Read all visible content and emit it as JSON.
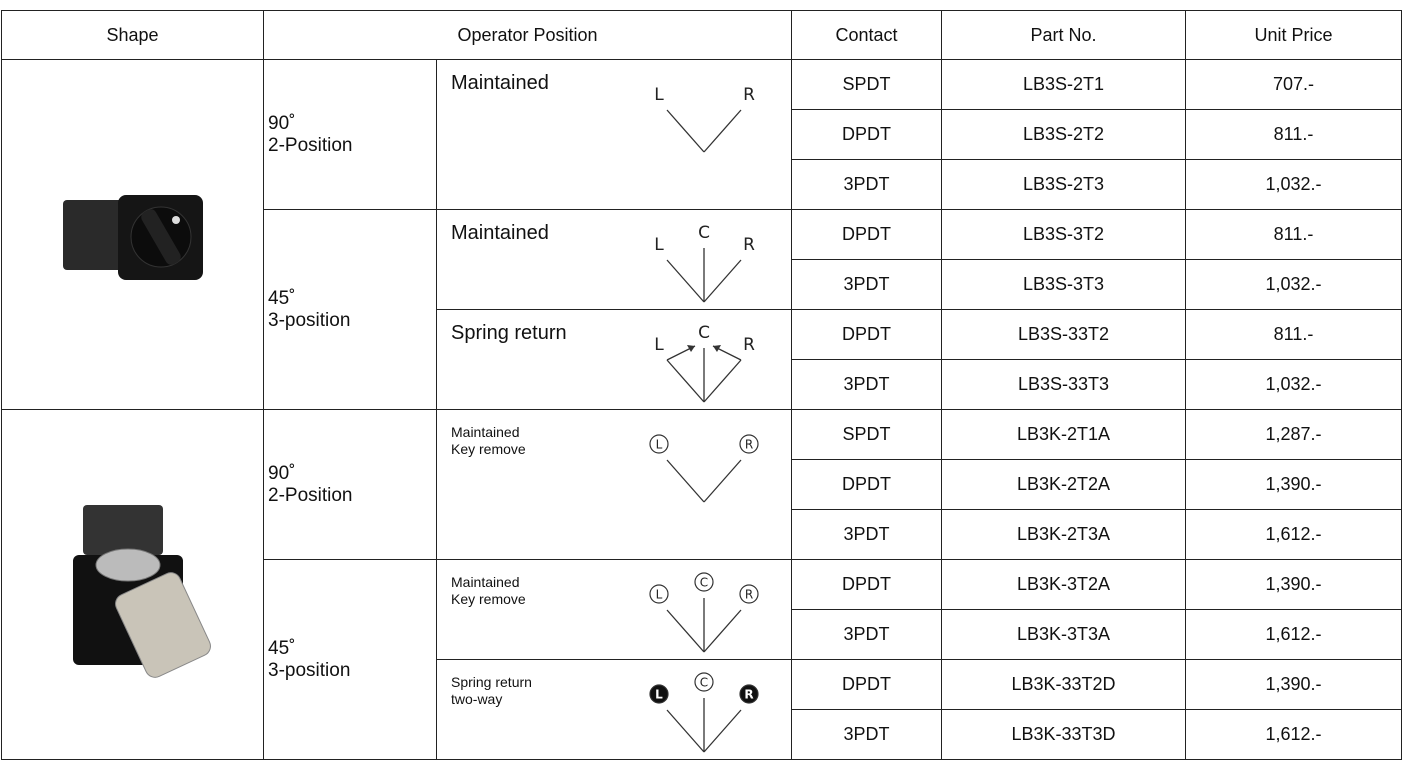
{
  "table": {
    "header": [
      "Shape",
      "Operator Position",
      "Contact",
      "Part No.",
      "Unit Price"
    ],
    "groups": [
      {
        "positions": [
          {
            "angle": "90˚",
            "label": "2-Position",
            "operators": [
              {
                "name": [
                  "Maintained"
                ],
                "small": false,
                "diagram": {
                  "labels": [
                    "L",
                    "R"
                  ],
                  "spring": false,
                  "circled": false,
                  "filled_ends": false
                },
                "rows": [
                  [
                    "SPDT",
                    "LB3S-2T1",
                    "707.-"
                  ],
                  [
                    "DPDT",
                    "LB3S-2T2",
                    "811.-"
                  ],
                  [
                    "3PDT",
                    "LB3S-2T3",
                    "1,032.-"
                  ]
                ]
              }
            ]
          },
          {
            "angle": "45˚",
            "label": "3-position",
            "operators": [
              {
                "name": [
                  "Maintained"
                ],
                "small": false,
                "diagram": {
                  "labels": [
                    "L",
                    "C",
                    "R"
                  ],
                  "spring": false,
                  "circled": false,
                  "filled_ends": false
                },
                "rows": [
                  [
                    "DPDT",
                    "LB3S-3T2",
                    "811.-"
                  ],
                  [
                    "3PDT",
                    "LB3S-3T3",
                    "1,032.-"
                  ]
                ]
              },
              {
                "name": [
                  "Spring return"
                ],
                "small": false,
                "diagram": {
                  "labels": [
                    "L",
                    "C",
                    "R"
                  ],
                  "spring": true,
                  "circled": false,
                  "filled_ends": false
                },
                "rows": [
                  [
                    "DPDT",
                    "LB3S-33T2",
                    "811.-"
                  ],
                  [
                    "3PDT",
                    "LB3S-33T3",
                    "1,032.-"
                  ]
                ]
              }
            ]
          }
        ]
      },
      {
        "positions": [
          {
            "angle": "90˚",
            "label": "2-Position",
            "operators": [
              {
                "name": [
                  "Maintained",
                  "Key remove"
                ],
                "small": true,
                "diagram": {
                  "labels": [
                    "L",
                    "R"
                  ],
                  "spring": false,
                  "circled": true,
                  "filled_ends": false
                },
                "rows": [
                  [
                    "SPDT",
                    "LB3K-2T1A",
                    "1,287.-"
                  ],
                  [
                    "DPDT",
                    "LB3K-2T2A",
                    "1,390.-"
                  ],
                  [
                    "3PDT",
                    "LB3K-2T3A",
                    "1,612.-"
                  ]
                ]
              }
            ]
          },
          {
            "angle": "45˚",
            "label": "3-position",
            "operators": [
              {
                "name": [
                  "Maintained",
                  "Key remove"
                ],
                "small": true,
                "diagram": {
                  "labels": [
                    "L",
                    "C",
                    "R"
                  ],
                  "spring": false,
                  "circled": true,
                  "filled_ends": false
                },
                "rows": [
                  [
                    "DPDT",
                    "LB3K-3T2A",
                    "1,390.-"
                  ],
                  [
                    "3PDT",
                    "LB3K-3T3A",
                    "1,612.-"
                  ]
                ]
              },
              {
                "name": [
                  "Spring return",
                  "two-way"
                ],
                "small": true,
                "diagram": {
                  "labels": [
                    "L",
                    "C",
                    "R"
                  ],
                  "spring": false,
                  "circled": true,
                  "filled_ends": true
                },
                "rows": [
                  [
                    "DPDT",
                    "LB3K-33T2D",
                    "1,390.-"
                  ],
                  [
                    "3PDT",
                    "LB3K-33T3D",
                    "1,612.-"
                  ]
                ]
              }
            ]
          }
        ]
      }
    ]
  }
}
